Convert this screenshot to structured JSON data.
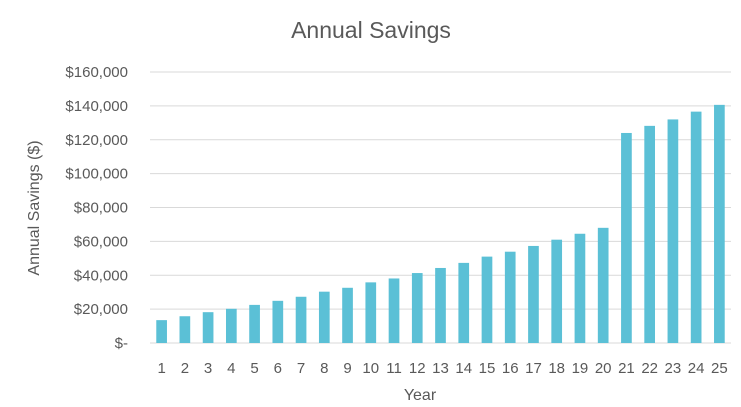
{
  "chart_data": {
    "type": "bar",
    "title": "Annual Savings",
    "xlabel": "Year",
    "ylabel": "Annual Savings ($)",
    "ylim": [
      0,
      160000
    ],
    "yticks": [
      {
        "value": 0,
        "label": "$-"
      },
      {
        "value": 20000,
        "label": "$20,000"
      },
      {
        "value": 40000,
        "label": "$40,000"
      },
      {
        "value": 60000,
        "label": "$60,000"
      },
      {
        "value": 80000,
        "label": "$80,000"
      },
      {
        "value": 100000,
        "label": "$100,000"
      },
      {
        "value": 120000,
        "label": "$120,000"
      },
      {
        "value": 140000,
        "label": "$140,000"
      },
      {
        "value": 160000,
        "label": "$160,000"
      }
    ],
    "grid": true,
    "legend": "none",
    "bar_color": "#5bc0d6",
    "categories": [
      "1",
      "2",
      "3",
      "4",
      "5",
      "6",
      "7",
      "8",
      "9",
      "10",
      "11",
      "12",
      "13",
      "14",
      "15",
      "16",
      "17",
      "18",
      "19",
      "20",
      "21",
      "22",
      "23",
      "24",
      "25"
    ],
    "values": [
      13500,
      15800,
      18200,
      20200,
      22500,
      24900,
      27300,
      30300,
      32600,
      35800,
      38100,
      41300,
      44300,
      47300,
      51000,
      53900,
      57300,
      61000,
      64500,
      68000,
      124000,
      128200,
      132000,
      136600,
      140600
    ]
  }
}
